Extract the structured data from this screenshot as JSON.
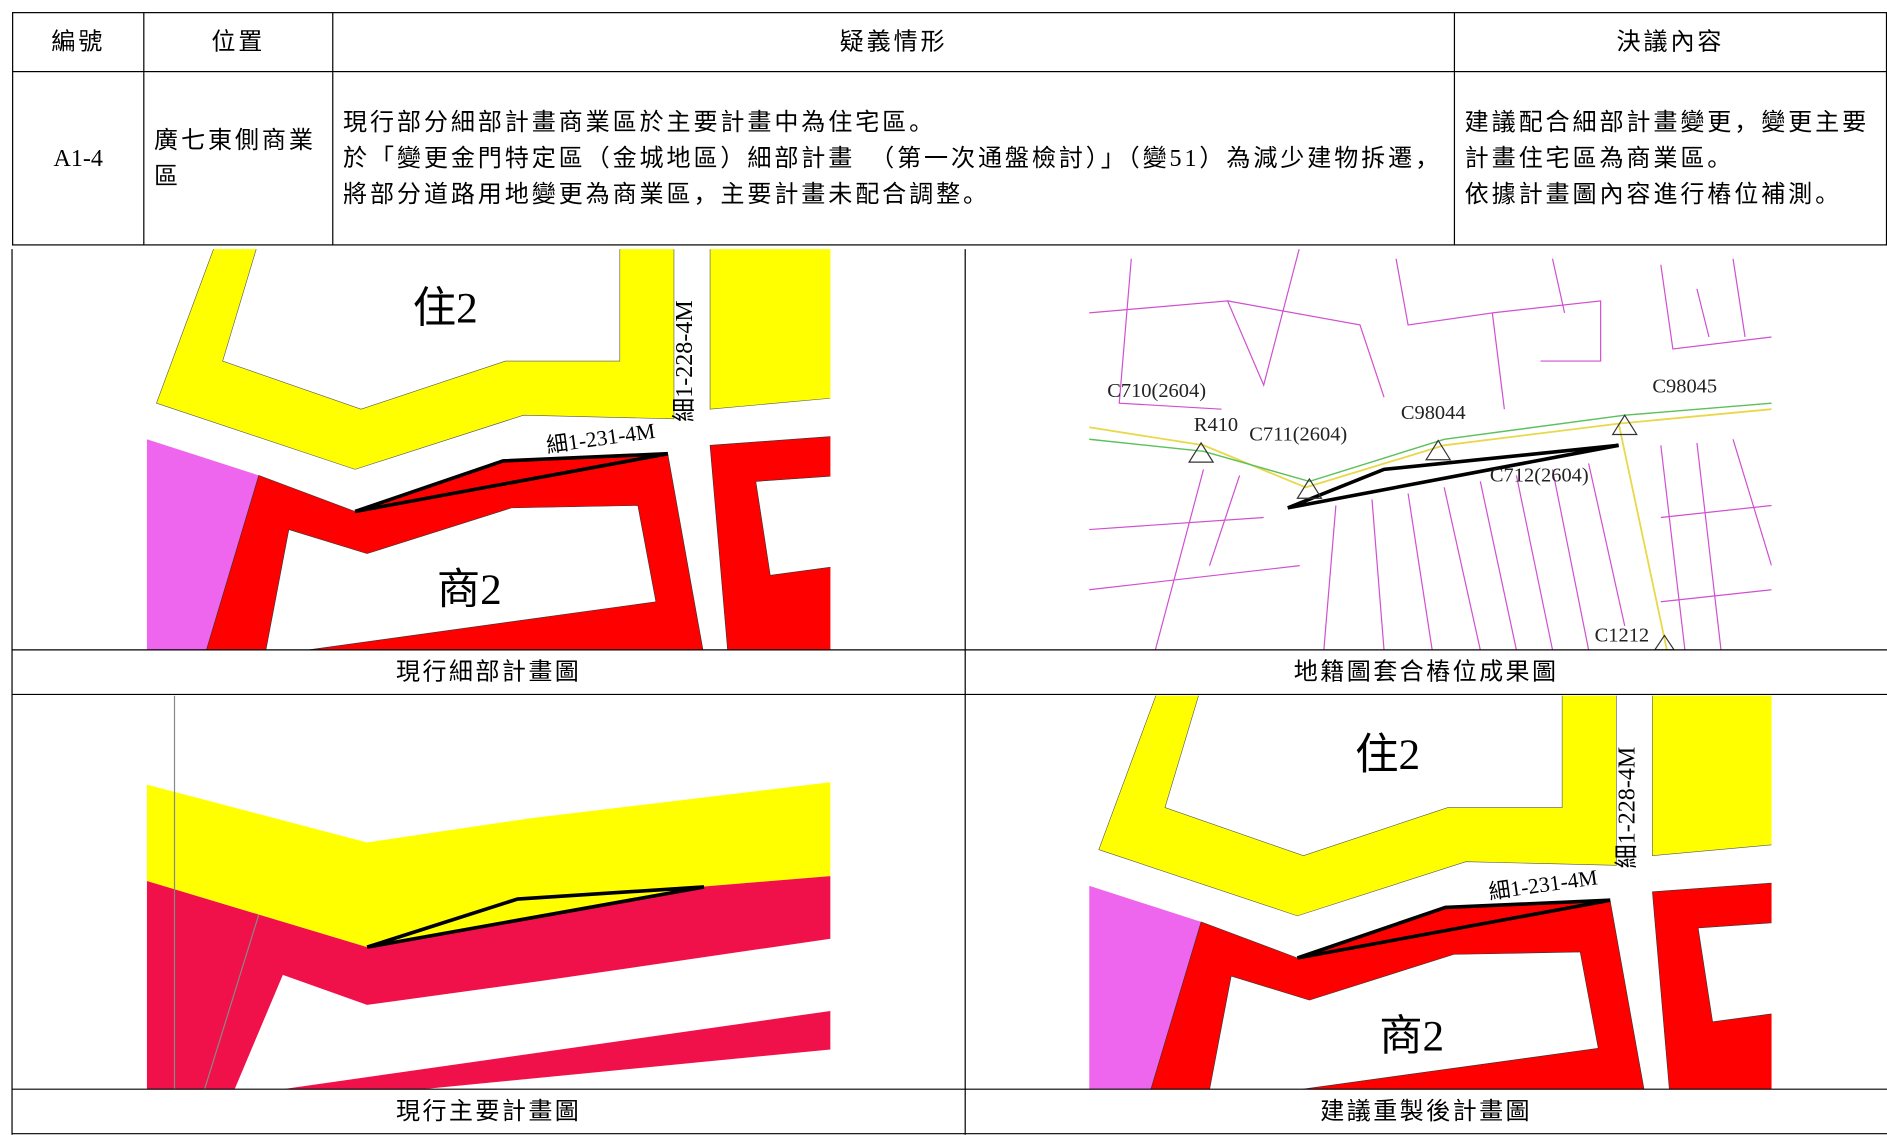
{
  "table": {
    "headers": [
      "編號",
      "位置",
      "疑義情形",
      "決議內容"
    ],
    "row": {
      "id": "A1-4",
      "location": "廣七東側商業區",
      "issue": [
        "現行部分細部計畫商業區於主要計畫中為住宅區。",
        "於「變更金門特定區（金城地區）細部計畫　（第一次通盤檢討）」（變51）為減少建物拆遷，將部分道路用地變更為商業區，主要計畫未配合調整。"
      ],
      "resolution": [
        "建議配合細部計畫變更，變更主要計畫住宅區為商業區。",
        "依據計畫圖內容進行樁位補測。"
      ]
    }
  },
  "maps": [
    {
      "caption": "現行細部計畫圖",
      "labels": [
        "住2",
        "商2",
        "細1-231-4M",
        "細1-228-4M"
      ]
    },
    {
      "caption": "地籍圖套合樁位成果圖",
      "labels": [
        "C710(2604)",
        "R410",
        "C711(2604)",
        "C98044",
        "C98045",
        "C712(2604)",
        "C1212"
      ]
    },
    {
      "caption": "現行主要計畫圖",
      "labels": []
    },
    {
      "caption": "建議重製後計畫圖",
      "labels": [
        "住2",
        "商2",
        "細1-231-4M",
        "細1-228-4M"
      ]
    }
  ]
}
